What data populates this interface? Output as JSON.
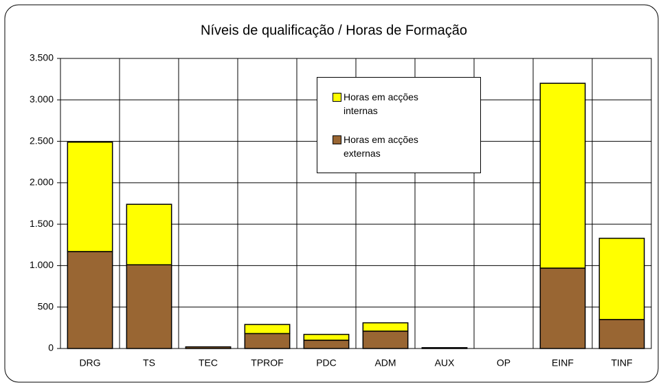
{
  "chart_data": {
    "type": "stacked_bar",
    "title": "Níveis de qualificação / Horas de Formação",
    "categories": [
      "DRG",
      "TS",
      "TEC",
      "TPROF",
      "PDC",
      "ADM",
      "AUX",
      "OP",
      "EINF",
      "TINF"
    ],
    "series": [
      {
        "name": "Horas em acções externas",
        "color": "#996633",
        "values": [
          1170,
          1010,
          20,
          180,
          100,
          210,
          10,
          0,
          970,
          350
        ]
      },
      {
        "name": "Horas em acções internas",
        "color": "#ffff00",
        "values": [
          1320,
          730,
          0,
          110,
          70,
          100,
          0,
          0,
          2230,
          980
        ]
      }
    ],
    "legend_order": [
      1,
      0
    ],
    "ylim": [
      0,
      3500
    ],
    "yticks": [
      0,
      {
        "value": 500,
        "label": "500"
      },
      {
        "value": 1000,
        "label": "1.000"
      },
      {
        "value": 1500,
        "label": "1.500"
      },
      {
        "value": 2000,
        "label": "2.000"
      },
      {
        "value": 2500,
        "label": "2.500"
      },
      {
        "value": 3000,
        "label": "3.000"
      },
      {
        "value": 3500,
        "label": "3.500"
      }
    ],
    "grid": true
  }
}
